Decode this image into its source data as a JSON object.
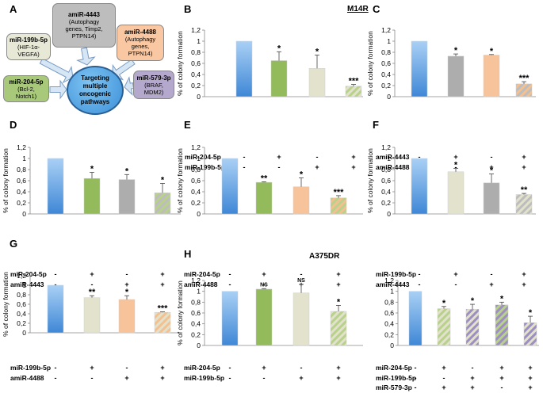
{
  "panel_labels": {
    "A": "A",
    "B": "B",
    "C": "C",
    "D": "D",
    "E": "E",
    "F": "F",
    "G": "G",
    "H": "H"
  },
  "diagram": {
    "center": "Targeting multiple oncogenic pathways",
    "nodes": [
      {
        "id": "amiR-4443",
        "title": "amiR-4443",
        "text": [
          "(Autophagy",
          "genes, Timp2,",
          "PTPN14)"
        ],
        "fill": "#bdbdbd"
      },
      {
        "id": "miR-199b-5p",
        "title": "miR-199b-5p",
        "text": [
          "(HIF-1α-",
          "VEGFA)"
        ],
        "fill": "#e8e8d6"
      },
      {
        "id": "amiR-4488",
        "title": "amiR-4488",
        "text": [
          "(Autophagy",
          "genes,",
          "PTPN14)"
        ],
        "fill": "#f9c8a3"
      },
      {
        "id": "miR-204-5p",
        "title": "miR-204-5p",
        "text": [
          "(Bcl-2,",
          "Notch1)"
        ],
        "fill": "#a8c97a"
      },
      {
        "id": "miR-579-3p",
        "title": "miR-579-3p",
        "text": [
          "(BRAF,",
          "MDM2)"
        ],
        "fill": "#b4a8cc"
      }
    ]
  },
  "colors": {
    "blue_top": "#a9d0f5",
    "blue_bottom": "#3f87d6",
    "green": "#93bb5b",
    "beige": "#e3e2cc",
    "grey": "#adadad",
    "peach": "#f7c39b",
    "stripe_green": "#b8d18b",
    "stripe_purple": "#9e8fc2",
    "stripe_peach": "#f4c08f",
    "stripe_grey": "#bdbdbd",
    "stripe_beige": "#e2e2cc"
  },
  "chart_data": [
    {
      "id": "B",
      "type": "bar",
      "ylabel": "% of colony formation",
      "yticks": [
        "0",
        "0,2",
        "0,4",
        "0,6",
        "0,8",
        "1",
        "1,2"
      ],
      "ylim": [
        0,
        1.2
      ],
      "annotation": "M14R",
      "values": [
        1.0,
        0.65,
        0.51,
        0.19
      ],
      "errors": [
        0,
        0.16,
        0.24,
        0.03
      ],
      "sig": [
        "",
        "*",
        "*",
        "***"
      ],
      "fills": [
        "blue",
        "green",
        "beige",
        "stripe:green:beige"
      ],
      "rows": [
        {
          "label": "miR-204-5p",
          "marks": [
            "-",
            "+",
            "-",
            "+"
          ]
        },
        {
          "label": "miR-199b-5p",
          "marks": [
            "-",
            "-",
            "+",
            "+"
          ]
        }
      ]
    },
    {
      "id": "C",
      "type": "bar",
      "ylabel": "% of colony formation",
      "yticks": [
        "0",
        "0,2",
        "0,4",
        "0,6",
        "0,8",
        "1",
        "1,2"
      ],
      "ylim": [
        0,
        1.2
      ],
      "values": [
        1.0,
        0.73,
        0.75,
        0.23
      ],
      "errors": [
        0,
        0.04,
        0.01,
        0.04
      ],
      "sig": [
        "",
        "*",
        "*",
        "***"
      ],
      "fills": [
        "blue",
        "grey",
        "peach",
        "stripe:grey:peach"
      ],
      "rows": [
        {
          "label": "amiR-4443",
          "marks": [
            "-",
            "+",
            "-",
            "+"
          ]
        },
        {
          "label": "amiR-4488",
          "marks": [
            "-",
            "-",
            "+",
            "+"
          ]
        }
      ]
    },
    {
      "id": "D",
      "type": "bar",
      "ylabel": "% of colony formation",
      "yticks": [
        "0",
        "0,2",
        "0,4",
        "0,6",
        "0,8",
        "1",
        "1,2"
      ],
      "ylim": [
        0,
        1.2
      ],
      "values": [
        1.0,
        0.64,
        0.62,
        0.38
      ],
      "errors": [
        0,
        0.11,
        0.09,
        0.17
      ],
      "sig": [
        "",
        "*",
        "*",
        "*"
      ],
      "fills": [
        "blue",
        "green",
        "grey",
        "stripe:green:grey"
      ],
      "rows": [
        {
          "label": "miR-204-5p",
          "marks": [
            "-",
            "+",
            "-",
            "+"
          ]
        },
        {
          "label": "amiR-4443",
          "marks": [
            "-",
            "-",
            "+",
            "+"
          ]
        }
      ]
    },
    {
      "id": "E",
      "type": "bar",
      "ylabel": "% of colony formation",
      "yticks": [
        "0",
        "0,2",
        "0,4",
        "0,6",
        "0,8",
        "1",
        "1,2"
      ],
      "ylim": [
        0,
        1.2
      ],
      "values": [
        1.0,
        0.57,
        0.49,
        0.29
      ],
      "errors": [
        0,
        0.01,
        0.16,
        0.04
      ],
      "sig": [
        "",
        "**",
        "*",
        "***"
      ],
      "fills": [
        "blue",
        "green",
        "peach",
        "stripe:peach:green"
      ],
      "rows": [
        {
          "label": "miR-204-5p",
          "marks": [
            "-",
            "+",
            "-",
            "+"
          ]
        },
        {
          "label": "amiR-4488",
          "marks": [
            "-",
            "-",
            "+",
            "+"
          ]
        }
      ]
    },
    {
      "id": "F",
      "type": "bar",
      "ylabel": "% of colony formation",
      "yticks": [
        "0",
        "0,2",
        "0,4",
        "0,6",
        "0,8",
        "1",
        "1,2"
      ],
      "ylim": [
        0,
        1.2
      ],
      "values": [
        1.0,
        0.76,
        0.56,
        0.35
      ],
      "errors": [
        0,
        0.06,
        0.16,
        0.02
      ],
      "sig": [
        "",
        "*",
        "*",
        "**"
      ],
      "fills": [
        "blue",
        "beige",
        "grey",
        "stripe:grey:beige"
      ],
      "rows": [
        {
          "label": "miR-199b-5p",
          "marks": [
            "-",
            "+",
            "-",
            "+"
          ]
        },
        {
          "label": "amiR-4443",
          "marks": [
            "-",
            "-",
            "+",
            "+"
          ]
        }
      ]
    },
    {
      "id": "G",
      "type": "bar",
      "ylabel": "% of colony formation",
      "yticks": [
        "0",
        "0,2",
        "0,4",
        "0,6",
        "0,8",
        "1",
        "1,2"
      ],
      "ylim": [
        0,
        1.2
      ],
      "values": [
        1.0,
        0.74,
        0.7,
        0.43
      ],
      "errors": [
        0,
        0.04,
        0.08,
        0.01
      ],
      "sig": [
        "",
        "**",
        "*",
        "***"
      ],
      "fills": [
        "blue",
        "beige",
        "peach",
        "stripe:peach:beige"
      ],
      "rows": [
        {
          "label": "miR-199b-5p",
          "marks": [
            "-",
            "+",
            "-",
            "+"
          ]
        },
        {
          "label": "amiR-4488",
          "marks": [
            "-",
            "-",
            "+",
            "+"
          ]
        }
      ]
    },
    {
      "id": "H1",
      "type": "bar",
      "ylabel": "% of colony formation",
      "yticks": [
        "0",
        "0,2",
        "0,4",
        "0,6",
        "0,8",
        "1",
        "1,2"
      ],
      "ylim": [
        0,
        1.2
      ],
      "annotation": "A375DR",
      "values": [
        1.0,
        1.04,
        0.97,
        0.63
      ],
      "errors": [
        0,
        0.01,
        0.16,
        0.11
      ],
      "sig": [
        "",
        "NS",
        "NS",
        "*"
      ],
      "fills": [
        "blue",
        "green",
        "beige",
        "stripe:green:beige"
      ],
      "rows": [
        {
          "label": "miR-204-5p",
          "marks": [
            "-",
            "+",
            "-",
            "+"
          ]
        },
        {
          "label": "miR-199b-5p",
          "marks": [
            "-",
            "-",
            "+",
            "+"
          ]
        }
      ]
    },
    {
      "id": "H2",
      "type": "bar",
      "ylabel": "",
      "yticks": [
        "0",
        "0,2",
        "0,4",
        "0,6",
        "0,8",
        "1",
        "1,2"
      ],
      "ylim": [
        0,
        1.2
      ],
      "values": [
        1.0,
        0.68,
        0.67,
        0.75,
        0.42
      ],
      "errors": [
        0,
        0.04,
        0.09,
        0.05,
        0.12
      ],
      "sig": [
        "",
        "*",
        "*",
        "*",
        "*"
      ],
      "fills": [
        "blue",
        "stripe:green:beige",
        "stripe:purple:beige",
        "stripe:purple:green",
        "stripe:purple:beige"
      ],
      "rows": [
        {
          "label": "miR-204-5p",
          "marks": [
            "-",
            "+",
            "-",
            "+",
            "+"
          ]
        },
        {
          "label": "miR-199b-5p",
          "marks": [
            "-",
            "-",
            "+",
            "+",
            "+"
          ]
        },
        {
          "label": "miR-579-3p",
          "marks": [
            "-",
            "+",
            "+",
            "-",
            "+"
          ]
        }
      ]
    }
  ]
}
